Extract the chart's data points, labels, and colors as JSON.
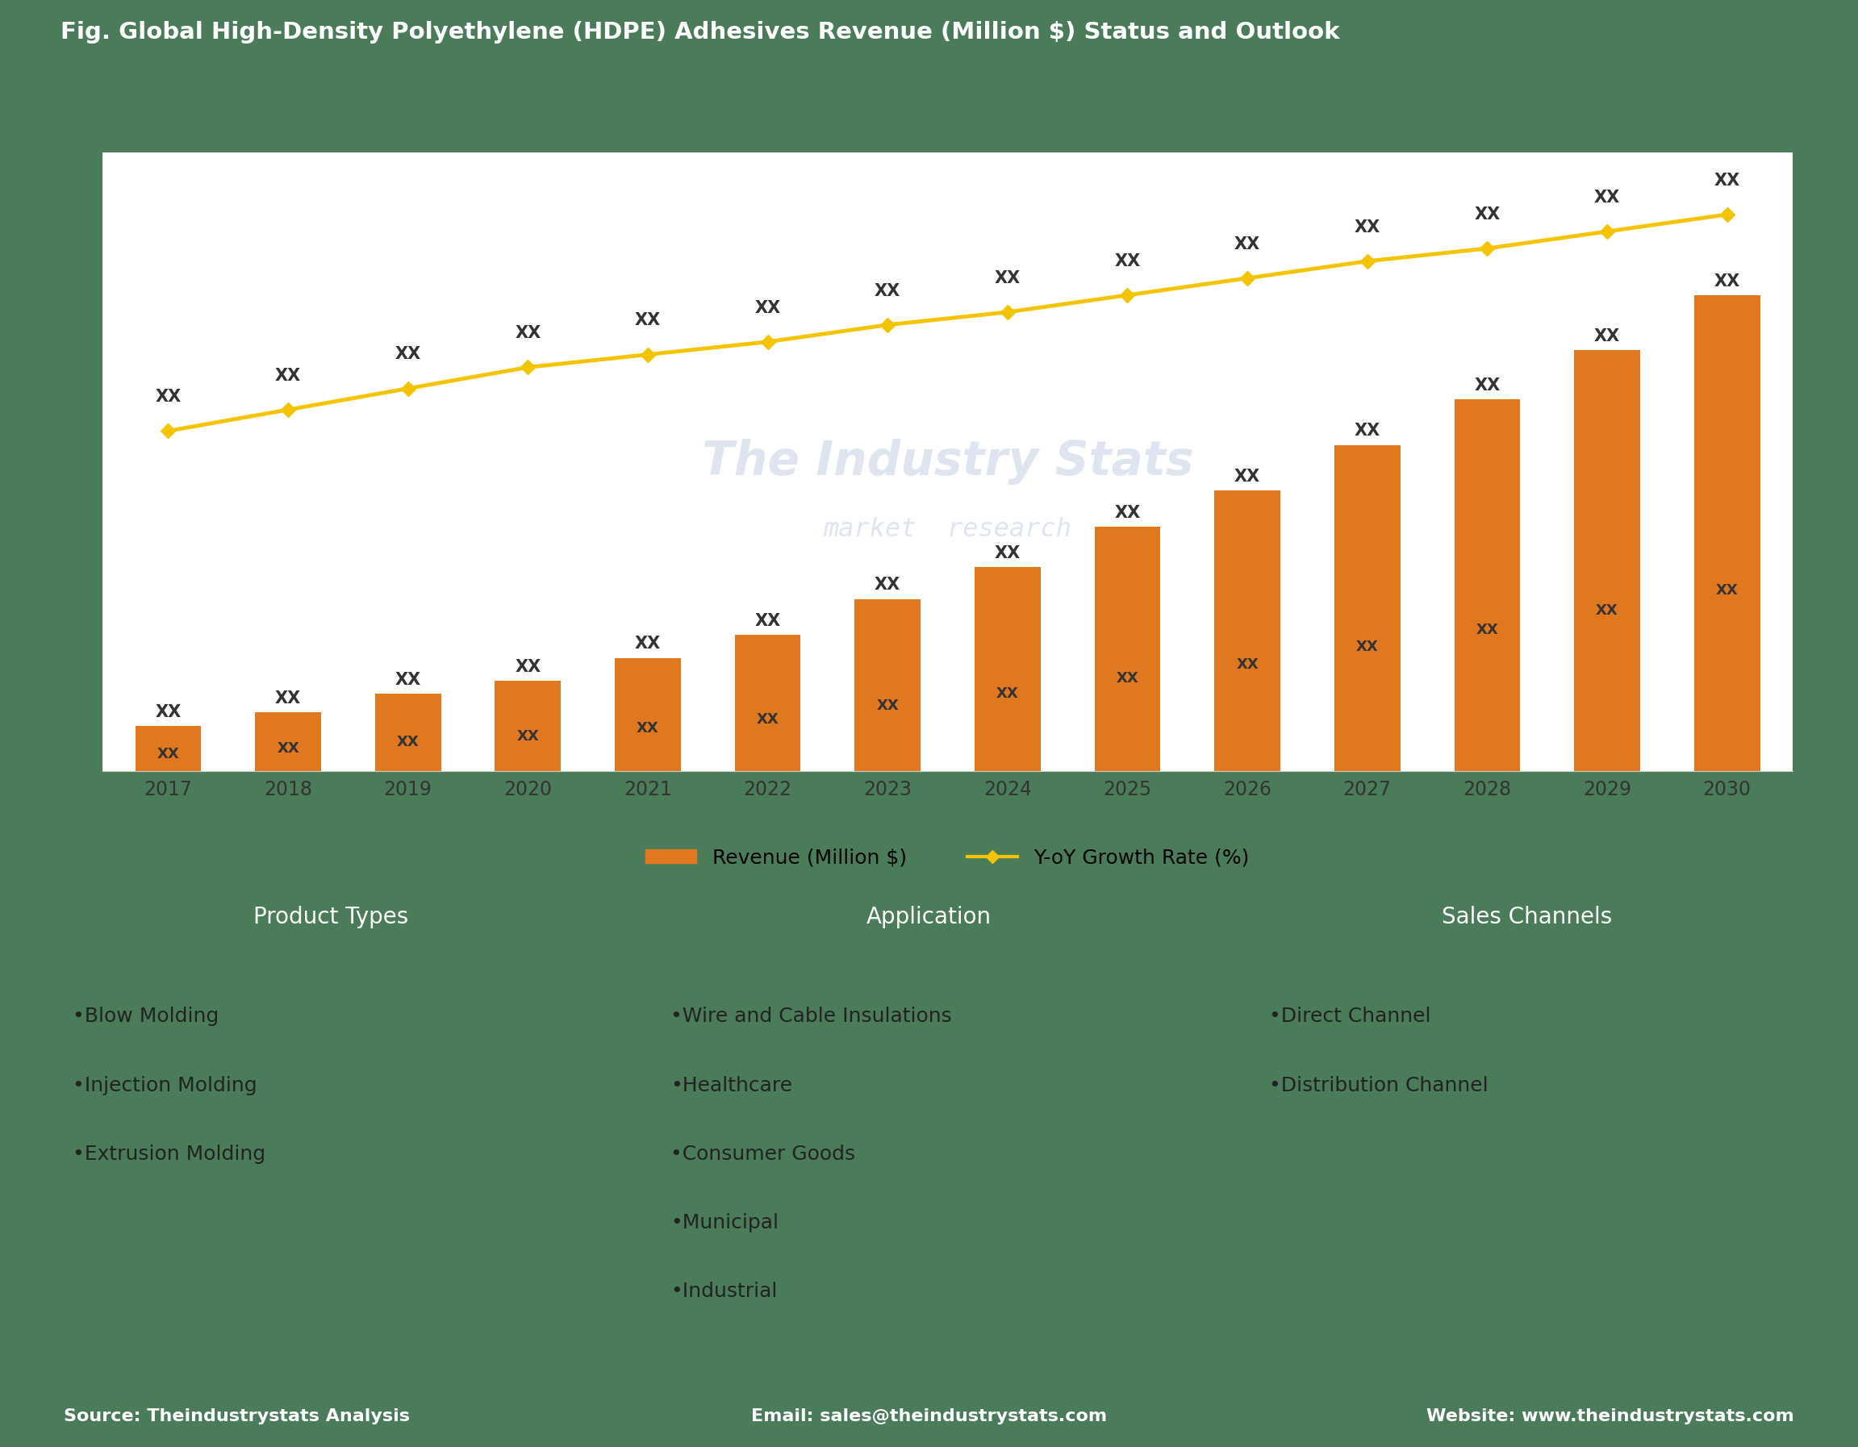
{
  "title": "Fig. Global High-Density Polyethylene (HDPE) Adhesives Revenue (Million $) Status and Outlook",
  "title_bg_color": "#5b7ec9",
  "title_text_color": "#ffffff",
  "chart_bg_color": "#ffffff",
  "outer_bg_color": "#4a7c59",
  "years": [
    2017,
    2018,
    2019,
    2020,
    2021,
    2022,
    2023,
    2024,
    2025,
    2026,
    2027,
    2028,
    2029,
    2030
  ],
  "bar_values": [
    10,
    13,
    17,
    20,
    25,
    30,
    38,
    45,
    54,
    62,
    72,
    82,
    93,
    105
  ],
  "line_values": [
    3.5,
    4.0,
    4.5,
    5.0,
    5.3,
    5.6,
    6.0,
    6.3,
    6.7,
    7.1,
    7.5,
    7.8,
    8.2,
    8.6
  ],
  "bar_color": "#e07820",
  "line_color": "#f5c400",
  "bar_label": "Revenue (Million $)",
  "line_label": "Y-oY Growth Rate (%)",
  "bar_annotation": "XX",
  "line_annotation": "XX",
  "watermark_line1": "The Industry Stats",
  "watermark_line2": "market  research",
  "grid_color": "#cccccc",
  "axis_label_color": "#333333",
  "bottom_section_bg": "#4a7c59",
  "panel_header_bg": "#e07820",
  "panel_header_text": "#ffffff",
  "panel_body_bg": "#f5dfd5",
  "panel_body_text": "#222222",
  "footer_bg": "#5b7ec9",
  "footer_text": "#ffffff",
  "product_types_title": "Product Types",
  "product_types_items": [
    "Blow Molding",
    "Injection Molding",
    "Extrusion Molding"
  ],
  "application_title": "Application",
  "application_items": [
    "Wire and Cable Insulations",
    "Healthcare",
    "Consumer Goods",
    "Municipal",
    "Industrial"
  ],
  "sales_channels_title": "Sales Channels",
  "sales_channels_items": [
    "Direct Channel",
    "Distribution Channel"
  ],
  "footer_left": "Source: Theindustrystats Analysis",
  "footer_center": "Email: sales@theindustrystats.com",
  "footer_right": "Website: www.theindustrystats.com"
}
